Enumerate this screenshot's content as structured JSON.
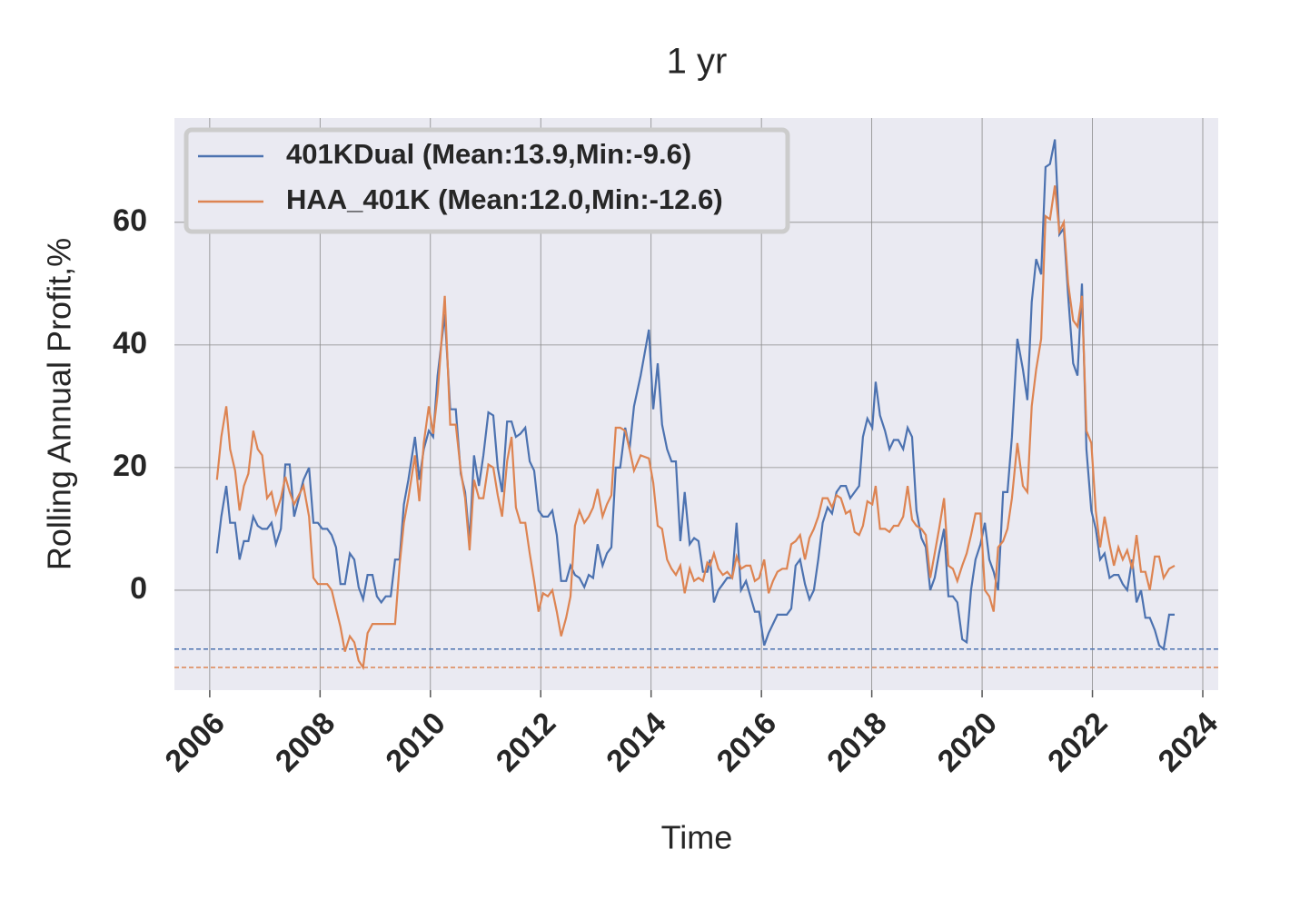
{
  "chart_data": {
    "type": "line",
    "title": "1 yr",
    "xlabel": "Time",
    "ylabel": "Rolling Annual Profit,%",
    "xlim": [
      2005.36,
      2024.28
    ],
    "ylim": [
      -16.3,
      77
    ],
    "xticks": [
      2006,
      2008,
      2010,
      2012,
      2014,
      2016,
      2018,
      2020,
      2022,
      2024
    ],
    "yticks": [
      0,
      20,
      40,
      60
    ],
    "grid": true,
    "legend": "upper left",
    "x": [
      2006.13,
      2006.21,
      2006.3,
      2006.37,
      2006.46,
      2006.54,
      2006.62,
      2006.7,
      2006.79,
      2006.87,
      2006.95,
      2007.04,
      2007.12,
      2007.2,
      2007.29,
      2007.37,
      2007.45,
      2007.53,
      2007.7,
      2007.8,
      2007.88,
      2007.96,
      2008.04,
      2008.13,
      2008.21,
      2008.29,
      2008.37,
      2008.45,
      2008.54,
      2008.62,
      2008.7,
      2008.78,
      2008.86,
      2008.95,
      2009.03,
      2009.11,
      2009.19,
      2009.28,
      2009.36,
      2009.44,
      2009.52,
      2009.6,
      2009.72,
      2009.8,
      2009.88,
      2009.97,
      2010.05,
      2010.13,
      2010.26,
      2010.36,
      2010.46,
      2010.55,
      2010.63,
      2010.71,
      2010.79,
      2010.88,
      2010.96,
      2011.05,
      2011.14,
      2011.22,
      2011.3,
      2011.39,
      2011.47,
      2011.55,
      2011.63,
      2011.72,
      2011.8,
      2011.88,
      2011.96,
      2012.04,
      2012.13,
      2012.21,
      2012.29,
      2012.37,
      2012.46,
      2012.54,
      2012.62,
      2012.7,
      2012.79,
      2012.87,
      2012.95,
      2013.03,
      2013.12,
      2013.2,
      2013.28,
      2013.36,
      2013.44,
      2013.53,
      2013.61,
      2013.69,
      2013.81,
      2013.96,
      2014.04,
      2014.12,
      2014.2,
      2014.29,
      2014.37,
      2014.45,
      2014.53,
      2014.61,
      2014.7,
      2014.78,
      2014.86,
      2014.94,
      2015.02,
      2015.07,
      2015.14,
      2015.22,
      2015.3,
      2015.38,
      2015.47,
      2015.55,
      2015.63,
      2015.72,
      2015.8,
      2015.88,
      2015.96,
      2016.05,
      2016.13,
      2016.21,
      2016.29,
      2016.38,
      2016.46,
      2016.54,
      2016.62,
      2016.7,
      2016.79,
      2016.87,
      2016.95,
      2017.03,
      2017.11,
      2017.2,
      2017.28,
      2017.36,
      2017.44,
      2017.53,
      2017.61,
      2017.69,
      2017.77,
      2017.84,
      2017.92,
      2018.01,
      2018.07,
      2018.15,
      2018.24,
      2018.32,
      2018.4,
      2018.48,
      2018.57,
      2018.65,
      2018.73,
      2018.81,
      2018.9,
      2018.98,
      2019.06,
      2019.14,
      2019.22,
      2019.31,
      2019.39,
      2019.47,
      2019.55,
      2019.64,
      2019.72,
      2019.8,
      2019.88,
      2019.97,
      2020.05,
      2020.13,
      2020.21,
      2020.29,
      2020.38,
      2020.46,
      2020.54,
      2020.64,
      2020.74,
      2020.82,
      2020.9,
      2020.98,
      2021.07,
      2021.15,
      2021.23,
      2021.32,
      2021.4,
      2021.48,
      2021.56,
      2021.65,
      2021.73,
      2021.81,
      2021.89,
      2021.98,
      2022.06,
      2022.14,
      2022.22,
      2022.31,
      2022.39,
      2022.47,
      2022.55,
      2022.63,
      2022.72,
      2022.8,
      2022.88,
      2022.96,
      2023.04,
      2023.13,
      2023.21,
      2023.29,
      2023.39,
      2023.49
    ],
    "series": [
      {
        "name": "401KDual (Mean:13.9,Min:-9.6)",
        "color": "#4c72b0",
        "min": -9.6,
        "values": [
          6,
          12,
          17,
          11,
          11,
          5,
          8,
          8,
          12,
          10.5,
          10,
          10,
          11,
          7.5,
          10,
          20.5,
          20.5,
          12,
          18,
          20,
          11,
          11,
          10,
          10,
          9,
          7,
          1,
          1,
          6,
          5,
          0.5,
          -1.5,
          2.5,
          2.5,
          -1,
          -2,
          -1,
          -1,
          5,
          5,
          14,
          18,
          25,
          18,
          23,
          26,
          25,
          35,
          45,
          29.5,
          29.5,
          19,
          16,
          8,
          22,
          17,
          22,
          29,
          28.5,
          20,
          16,
          27.5,
          27.5,
          25,
          25.5,
          26.5,
          21,
          19.5,
          13,
          12,
          12,
          13,
          9,
          1.5,
          1.5,
          4,
          2.5,
          2,
          0.5,
          2.5,
          2,
          7.5,
          4,
          6,
          7,
          20,
          20,
          26.5,
          23,
          30,
          35,
          42.5,
          29.5,
          37,
          27,
          23,
          21,
          21,
          8,
          16,
          7.5,
          8.5,
          8,
          3,
          3,
          5,
          -2,
          0,
          1,
          2,
          2,
          11,
          0,
          1.5,
          -1,
          -3.5,
          -3.5,
          -9,
          -7,
          -5.5,
          -4,
          -4,
          -4,
          -3,
          4,
          5,
          1,
          -1.5,
          0,
          5,
          11,
          13.5,
          12.5,
          16,
          17,
          17,
          15,
          16,
          17,
          25,
          28,
          26.5,
          34,
          28.5,
          26,
          23,
          24.5,
          24.5,
          23,
          26.5,
          25,
          13,
          8.5,
          7,
          0,
          2,
          6,
          10,
          -1,
          -1,
          -2,
          -8,
          -8.5,
          0,
          5,
          7.5,
          11,
          5,
          3,
          0,
          16,
          16,
          25,
          41,
          36,
          31,
          47,
          54,
          51.5,
          69,
          69.5,
          73.5,
          58,
          59,
          48,
          37,
          35,
          50,
          23,
          13,
          10,
          5,
          6,
          2,
          2.5,
          2.5,
          1,
          0,
          5,
          -2,
          0,
          -4.5,
          -4.5,
          -6.5,
          -9,
          -9.6,
          -4,
          -4
        ]
      },
      {
        "name": "HAA_401K (Mean:12.0,Min:-12.6)",
        "color": "#dd8452",
        "min": -12.6,
        "values": [
          18,
          25,
          30,
          23,
          19.5,
          13,
          17,
          19,
          26,
          23,
          22,
          15,
          16,
          12.5,
          15,
          18.5,
          16,
          14,
          17,
          12,
          2,
          1,
          1,
          1,
          0,
          -3,
          -6,
          -10,
          -7.5,
          -8.5,
          -11.5,
          -12.6,
          -7,
          -5.5,
          -5.5,
          -5.5,
          -5.5,
          -5.5,
          -5.5,
          4,
          11,
          15,
          22,
          14.5,
          24,
          30,
          25.5,
          32,
          48,
          27,
          27,
          19.5,
          15,
          6.5,
          18,
          15,
          15,
          20.5,
          20,
          15.5,
          12,
          21,
          25,
          13.5,
          11,
          11,
          6,
          1.5,
          -3.5,
          -0.5,
          -1,
          0,
          -3.5,
          -7.5,
          -4.5,
          -1,
          10.5,
          13,
          11,
          12,
          13.5,
          16.5,
          12,
          14,
          15.5,
          26.5,
          26.5,
          26,
          23,
          19.5,
          22,
          21.5,
          17.5,
          10.5,
          10,
          5,
          3.5,
          2.5,
          4,
          -0.5,
          3.5,
          1.5,
          2,
          1.5,
          4.5,
          4,
          6,
          3.5,
          2.5,
          3,
          2,
          5.5,
          3.5,
          4,
          4,
          1.5,
          2,
          5,
          -0.5,
          1.5,
          3,
          3.5,
          3.5,
          7.5,
          8,
          9,
          5,
          8.5,
          10,
          12,
          15,
          15,
          13.5,
          15.5,
          15,
          12.5,
          13,
          9.5,
          9,
          10.5,
          14.5,
          14,
          17,
          10,
          10,
          9.5,
          10.5,
          10.5,
          12,
          17,
          11.5,
          10.5,
          10,
          9,
          2,
          6,
          10,
          15,
          4,
          3.5,
          1.5,
          4,
          6,
          9,
          12.5,
          12.5,
          0,
          -1,
          -3.5,
          7,
          8,
          10,
          15,
          24,
          17,
          16,
          30,
          36,
          41,
          61,
          60.5,
          66,
          58.5,
          60,
          50,
          44,
          43,
          48,
          26,
          24,
          13,
          7,
          12,
          7.5,
          4,
          7,
          5,
          6.5,
          3.5,
          9,
          3,
          3,
          0,
          5.5,
          5.5,
          2,
          3.5,
          4
        ]
      }
    ]
  }
}
